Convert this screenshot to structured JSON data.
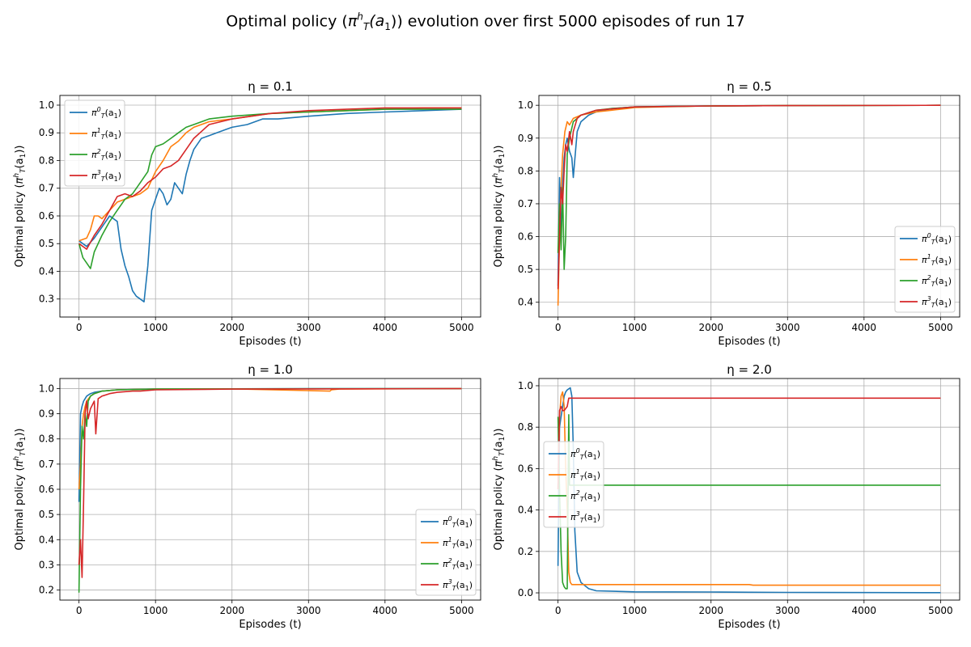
{
  "figure": {
    "title_prefix": "Optimal policy (",
    "title_pi": "π",
    "title_sup": "h",
    "title_sub": "T",
    "title_arg": "(a",
    "title_arg_sub": "1",
    "title_suffix": ")) evolution over first 5000 episodes of run 17"
  },
  "chart_data": [
    {
      "type": "line",
      "title": "η = 0.1",
      "xlabel": "Episodes (t)",
      "ylabel": "Optimal policy (π_T^h(a_1))",
      "xlim": [
        -250,
        5250
      ],
      "ylim": [
        0.235,
        1.035
      ],
      "xticks": [
        0,
        1000,
        2000,
        3000,
        4000,
        5000
      ],
      "yticks": [
        0.3,
        0.4,
        0.5,
        0.6,
        0.7,
        0.8,
        0.9,
        1.0
      ],
      "grid": true,
      "legend_position": "upper-left",
      "series": [
        {
          "name": "π_T^0(a_1)",
          "color": "#1f77b4",
          "x": [
            0,
            100,
            200,
            300,
            400,
            500,
            550,
            600,
            650,
            700,
            750,
            800,
            850,
            900,
            950,
            1000,
            1050,
            1100,
            1150,
            1200,
            1250,
            1300,
            1350,
            1400,
            1450,
            1500,
            1600,
            1700,
            1800,
            1900,
            2000,
            2200,
            2400,
            2600,
            3000,
            3500,
            4000,
            4500,
            5000
          ],
          "y": [
            0.51,
            0.49,
            0.52,
            0.56,
            0.6,
            0.58,
            0.48,
            0.42,
            0.38,
            0.33,
            0.31,
            0.3,
            0.29,
            0.42,
            0.62,
            0.66,
            0.7,
            0.68,
            0.64,
            0.66,
            0.72,
            0.7,
            0.68,
            0.75,
            0.8,
            0.84,
            0.88,
            0.89,
            0.9,
            0.91,
            0.92,
            0.93,
            0.95,
            0.95,
            0.96,
            0.97,
            0.975,
            0.98,
            0.985
          ]
        },
        {
          "name": "π_T^1(a_1)",
          "color": "#ff7f0e",
          "x": [
            0,
            100,
            150,
            200,
            250,
            300,
            400,
            500,
            600,
            700,
            800,
            900,
            1000,
            1100,
            1200,
            1300,
            1400,
            1500,
            1700,
            2000,
            2500,
            3000,
            3500,
            4000,
            4500,
            5000
          ],
          "y": [
            0.51,
            0.52,
            0.55,
            0.6,
            0.6,
            0.59,
            0.62,
            0.65,
            0.66,
            0.67,
            0.68,
            0.7,
            0.76,
            0.8,
            0.85,
            0.87,
            0.9,
            0.92,
            0.94,
            0.95,
            0.97,
            0.975,
            0.98,
            0.985,
            0.99,
            0.99
          ]
        },
        {
          "name": "π_T^2(a_1)",
          "color": "#2ca02c",
          "x": [
            0,
            50,
            100,
            150,
            200,
            250,
            300,
            400,
            500,
            600,
            700,
            800,
            900,
            950,
            1000,
            1100,
            1200,
            1300,
            1400,
            1500,
            1700,
            2000,
            2500,
            3000,
            3500,
            4000,
            4500,
            5000
          ],
          "y": [
            0.5,
            0.45,
            0.43,
            0.41,
            0.47,
            0.5,
            0.53,
            0.58,
            0.62,
            0.66,
            0.68,
            0.72,
            0.76,
            0.82,
            0.85,
            0.86,
            0.88,
            0.9,
            0.92,
            0.93,
            0.95,
            0.96,
            0.97,
            0.975,
            0.98,
            0.985,
            0.985,
            0.985
          ]
        },
        {
          "name": "π_T^3(a_1)",
          "color": "#d62728",
          "x": [
            0,
            100,
            200,
            300,
            400,
            500,
            600,
            700,
            800,
            900,
            1000,
            1100,
            1200,
            1300,
            1400,
            1500,
            1700,
            2000,
            2500,
            3000,
            3500,
            4000,
            4500,
            5000
          ],
          "y": [
            0.5,
            0.48,
            0.53,
            0.57,
            0.62,
            0.67,
            0.68,
            0.67,
            0.69,
            0.72,
            0.74,
            0.77,
            0.78,
            0.8,
            0.84,
            0.88,
            0.93,
            0.95,
            0.97,
            0.98,
            0.985,
            0.99,
            0.99,
            0.99
          ]
        }
      ]
    },
    {
      "type": "line",
      "title": "η = 0.5",
      "xlabel": "Episodes (t)",
      "ylabel": "Optimal policy (π_T^h(a_1))",
      "xlim": [
        -250,
        5250
      ],
      "ylim": [
        0.355,
        1.03
      ],
      "xticks": [
        0,
        1000,
        2000,
        3000,
        4000,
        5000
      ],
      "yticks": [
        0.4,
        0.5,
        0.6,
        0.7,
        0.8,
        0.9,
        1.0
      ],
      "grid": true,
      "legend_position": "lower-right",
      "series": [
        {
          "name": "π_T^0(a_1)",
          "color": "#1f77b4",
          "x": [
            0,
            20,
            40,
            60,
            80,
            100,
            120,
            150,
            180,
            200,
            250,
            300,
            400,
            500,
            700,
            1000,
            1500,
            2000,
            3000,
            5000
          ],
          "y": [
            0.45,
            0.78,
            0.6,
            0.75,
            0.84,
            0.88,
            0.9,
            0.86,
            0.84,
            0.78,
            0.92,
            0.95,
            0.97,
            0.98,
            0.99,
            0.995,
            0.997,
            0.998,
            0.999,
            1.0
          ]
        },
        {
          "name": "π_T^1(a_1)",
          "color": "#ff7f0e",
          "x": [
            0,
            10,
            30,
            60,
            90,
            120,
            150,
            200,
            300,
            500,
            700,
            900,
            1000,
            1500,
            2000,
            3000,
            5000
          ],
          "y": [
            0.39,
            0.5,
            0.7,
            0.85,
            0.92,
            0.95,
            0.94,
            0.96,
            0.97,
            0.98,
            0.985,
            0.99,
            0.993,
            0.996,
            0.998,
            0.999,
            1.0
          ]
        },
        {
          "name": "π_T^2(a_1)",
          "color": "#2ca02c",
          "x": [
            0,
            20,
            40,
            60,
            80,
            100,
            120,
            150,
            200,
            300,
            500,
            700,
            1000,
            2000,
            3000,
            5000
          ],
          "y": [
            0.55,
            0.7,
            0.56,
            0.75,
            0.5,
            0.6,
            0.85,
            0.9,
            0.95,
            0.97,
            0.985,
            0.99,
            0.995,
            0.998,
            0.999,
            1.0
          ]
        },
        {
          "name": "π_T^3(a_1)",
          "color": "#d62728",
          "x": [
            0,
            20,
            40,
            60,
            80,
            100,
            120,
            150,
            180,
            200,
            250,
            300,
            500,
            1000,
            2000,
            3000,
            5000
          ],
          "y": [
            0.44,
            0.6,
            0.75,
            0.7,
            0.8,
            0.88,
            0.86,
            0.92,
            0.88,
            0.92,
            0.96,
            0.97,
            0.985,
            0.995,
            0.998,
            0.999,
            1.0
          ]
        }
      ]
    },
    {
      "type": "line",
      "title": "η = 1.0",
      "xlabel": "Episodes (t)",
      "ylabel": "Optimal policy (π_T^h(a_1))",
      "xlim": [
        -250,
        5250
      ],
      "ylim": [
        0.16,
        1.04
      ],
      "xticks": [
        0,
        1000,
        2000,
        3000,
        4000,
        5000
      ],
      "yticks": [
        0.2,
        0.3,
        0.4,
        0.5,
        0.6,
        0.7,
        0.8,
        0.9,
        1.0
      ],
      "grid": true,
      "legend_position": "lower-right",
      "series": [
        {
          "name": "π_T^0(a_1)",
          "color": "#1f77b4",
          "x": [
            0,
            20,
            40,
            60,
            80,
            100,
            150,
            200,
            300,
            500,
            1000,
            2000,
            3000,
            5000
          ],
          "y": [
            0.55,
            0.9,
            0.93,
            0.95,
            0.96,
            0.97,
            0.98,
            0.985,
            0.99,
            0.995,
            0.998,
            0.999,
            1.0,
            1.0
          ]
        },
        {
          "name": "π_T^1(a_1)",
          "color": "#ff7f0e",
          "x": [
            0,
            20,
            40,
            60,
            80,
            100,
            150,
            200,
            300,
            500,
            1000,
            2000,
            3280,
            3300,
            3400,
            5000
          ],
          "y": [
            0.6,
            0.7,
            0.85,
            0.9,
            0.93,
            0.95,
            0.97,
            0.98,
            0.99,
            0.995,
            0.998,
            0.999,
            0.99,
            0.995,
            0.998,
            1.0
          ]
        },
        {
          "name": "π_T^2(a_1)",
          "color": "#2ca02c",
          "x": [
            0,
            20,
            40,
            60,
            80,
            100,
            120,
            150,
            200,
            300,
            500,
            1000,
            2000,
            5000
          ],
          "y": [
            0.19,
            0.6,
            0.85,
            0.8,
            0.9,
            0.85,
            0.95,
            0.97,
            0.98,
            0.99,
            0.995,
            0.998,
            0.999,
            1.0
          ]
        },
        {
          "name": "π_T^3(a_1)",
          "color": "#d62728",
          "x": [
            0,
            20,
            40,
            60,
            80,
            100,
            120,
            150,
            200,
            220,
            250,
            300,
            400,
            500,
            700,
            800,
            1000,
            2000,
            5000
          ],
          "y": [
            0.3,
            0.4,
            0.25,
            0.55,
            0.9,
            0.95,
            0.88,
            0.92,
            0.95,
            0.82,
            0.96,
            0.97,
            0.98,
            0.985,
            0.99,
            0.99,
            0.995,
            0.998,
            1.0
          ]
        }
      ]
    },
    {
      "type": "line",
      "title": "η = 2.0",
      "xlabel": "Episodes (t)",
      "ylabel": "Optimal policy (π_T^h(a_1))",
      "xlim": [
        -250,
        5250
      ],
      "ylim": [
        -0.035,
        1.035
      ],
      "xticks": [
        0,
        1000,
        2000,
        3000,
        4000,
        5000
      ],
      "yticks": [
        0.0,
        0.2,
        0.4,
        0.6,
        0.8,
        1.0
      ],
      "grid": true,
      "legend_position": "center-left",
      "series": [
        {
          "name": "π_T^0(a_1)",
          "color": "#1f77b4",
          "x": [
            0,
            20,
            40,
            60,
            80,
            100,
            120,
            140,
            160,
            180,
            200,
            220,
            250,
            300,
            400,
            500,
            1000,
            2000,
            2500,
            3000,
            5000
          ],
          "y": [
            0.13,
            0.8,
            0.85,
            0.9,
            0.95,
            0.97,
            0.98,
            0.985,
            0.99,
            0.95,
            0.7,
            0.3,
            0.1,
            0.05,
            0.02,
            0.01,
            0.005,
            0.004,
            0.003,
            0.002,
            0.001
          ]
        },
        {
          "name": "π_T^1(a_1)",
          "color": "#ff7f0e",
          "x": [
            0,
            20,
            40,
            60,
            80,
            100,
            120,
            140,
            160,
            180,
            200,
            250,
            300,
            500,
            1000,
            2000,
            2500,
            2550,
            3000,
            5000
          ],
          "y": [
            0.5,
            0.85,
            0.95,
            0.97,
            0.9,
            0.6,
            0.4,
            0.1,
            0.05,
            0.04,
            0.04,
            0.04,
            0.04,
            0.04,
            0.04,
            0.04,
            0.04,
            0.037,
            0.037,
            0.037
          ]
        },
        {
          "name": "π_T^2(a_1)",
          "color": "#2ca02c",
          "x": [
            0,
            20,
            40,
            60,
            80,
            100,
            120,
            140,
            150,
            160,
            170,
            200,
            500,
            1000,
            2000,
            3000,
            5000
          ],
          "y": [
            0.85,
            0.5,
            0.2,
            0.05,
            0.03,
            0.02,
            0.02,
            0.86,
            0.52,
            0.52,
            0.52,
            0.52,
            0.52,
            0.52,
            0.52,
            0.52,
            0.52
          ]
        },
        {
          "name": "π_T^3(a_1)",
          "color": "#d62728",
          "x": [
            0,
            20,
            40,
            60,
            80,
            100,
            120,
            140,
            150,
            160,
            200,
            500,
            1000,
            2000,
            3000,
            5000
          ],
          "y": [
            0.5,
            0.88,
            0.9,
            0.88,
            0.88,
            0.89,
            0.9,
            0.94,
            0.94,
            0.94,
            0.94,
            0.94,
            0.94,
            0.94,
            0.94,
            0.94
          ]
        }
      ]
    }
  ]
}
